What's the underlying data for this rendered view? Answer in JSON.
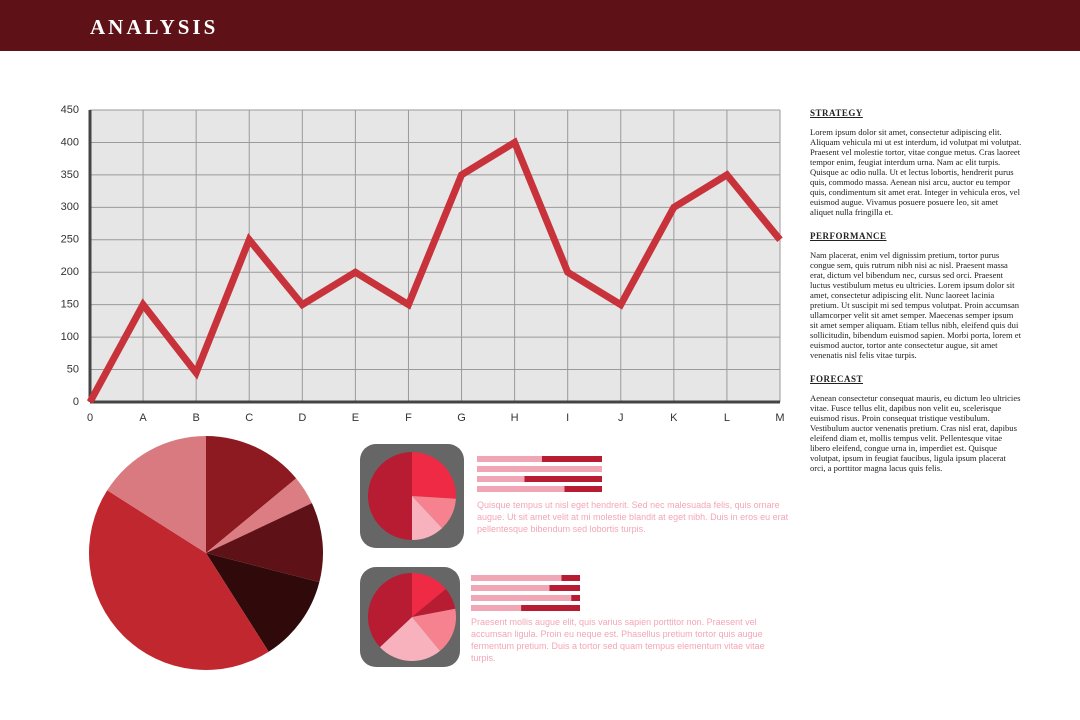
{
  "header": {
    "title": "ANALYSIS"
  },
  "chart_data": [
    {
      "type": "line",
      "categories": [
        "0",
        "A",
        "B",
        "C",
        "D",
        "E",
        "F",
        "G",
        "H",
        "I",
        "J",
        "K",
        "L",
        "M"
      ],
      "values": [
        0,
        150,
        45,
        250,
        150,
        200,
        150,
        350,
        400,
        200,
        150,
        300,
        350,
        250
      ],
      "color": "#c8323a",
      "ylim": [
        0,
        450
      ],
      "yticks": [
        0,
        50,
        100,
        150,
        200,
        250,
        300,
        350,
        400,
        450
      ],
      "grid": true
    },
    {
      "type": "pie",
      "values": [
        14,
        4,
        11,
        12,
        43,
        16
      ],
      "colors": [
        "#8e1a21",
        "#db7d82",
        "#5e1217",
        "#300a0b",
        "#c1272f",
        "#d97a80"
      ]
    },
    {
      "type": "pie",
      "values": [
        26,
        12,
        12,
        50
      ],
      "colors": [
        "#ee2a44",
        "#f6828f",
        "#f8b2bd",
        "#b71c33"
      ]
    },
    {
      "type": "bar",
      "values": [
        52,
        100,
        38,
        70
      ],
      "xlim": [
        0,
        100
      ],
      "color": "#f0a6b4",
      "track_color": "#b71c33"
    },
    {
      "type": "pie",
      "values": [
        14,
        8,
        17,
        24,
        37
      ],
      "colors": [
        "#ee2a44",
        "#b71c33",
        "#f6828f",
        "#f8b2bd",
        "#b71c33"
      ]
    },
    {
      "type": "bar",
      "values": [
        83,
        72,
        92,
        46
      ],
      "xlim": [
        0,
        100
      ],
      "color": "#f0a6b4",
      "track_color": "#b71c33"
    }
  ],
  "captions": [
    "Quisque tempus ut nisl eget hendrerit. Sed nec malesuada felis, quis ornare augue. Ut sit amet velit at mi molestie blandit at eget nibh. Duis in eros eu erat pellentesque bibendum sed lobortis turpis.",
    "Praesent mollis augue elit, quis varius sapien porttitor non. Praesent vel accumsan ligula. Proin eu neque est. Phasellus pretium tortor quis augue fermentum pretium. Duis a tortor sed quam tempus elementum vitae vitae turpis."
  ],
  "sections": [
    {
      "heading": "STRATEGY",
      "body": "Lorem ipsum dolor sit amet, consectetur adipiscing elit. Aliquam vehicula mi ut est interdum, id volutpat mi volutpat. Praesent vel molestie tortor, vitae congue metus. Cras laoreet tempor enim, feugiat interdum urna. Nam ac elit turpis. Quisque ac odio nulla. Ut et lectus lobortis, hendrerit purus quis, commodo massa. Aenean nisi arcu, auctor eu tempor quis, condimentum sit amet erat. Integer in vehicula eros, vel euismod augue. Vivamus posuere posuere leo, sit amet aliquet nulla fringilla et."
    },
    {
      "heading": "PERFORMANCE",
      "body": "Nam placerat, enim vel dignissim pretium, tortor purus congue sem, quis rutrum nibh nisi ac nisl. Praesent massa erat, dictum vel bibendum nec, cursus sed orci. Praesent luctus vestibulum metus eu ultricies. Lorem ipsum dolor sit amet, consectetur adipiscing elit. Nunc laoreet lacinia pretium. Ut suscipit mi sed tempus volutpat. Proin accumsan ullamcorper velit sit amet semper. Maecenas semper ipsum sit amet semper aliquam. Etiam tellus nibh, eleifend quis dui sollicitudin, bibendum euismod sapien. Morbi porta, lorem et euismod auctor, tortor ante consectetur augue, sit amet venenatis nisl felis vitae turpis."
    },
    {
      "heading": "FORECAST",
      "body": "Aenean consectetur consequat mauris, eu dictum leo ultricies vitae. Fusce tellus elit, dapibus non velit eu, scelerisque euismod risus. Proin consequat tristique vestibulum. Vestibulum auctor venenatis pretium. Cras nisl erat, dapibus eleifend diam et, mollis tempus velit. Pellentesque vitae libero eleifend, congue urna in, imperdiet est. Quisque volutpat, ipsum in feugiat faucibus, ligula ipsum placerat orci, a porttitor magna lacus quis felis."
    }
  ]
}
